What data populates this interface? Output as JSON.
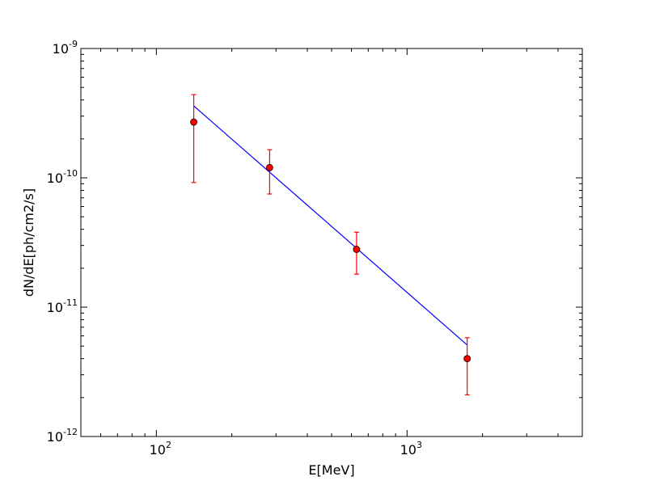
{
  "chart_data": {
    "type": "scatter",
    "title": "",
    "xlabel": "E[MeV]",
    "ylabel": "dN/dE[ph/cm2/s]",
    "xscale": "log",
    "yscale": "log",
    "xlim": [
      50,
      5000
    ],
    "ylim": [
      1e-12,
      1e-09
    ],
    "grid": false,
    "legend": "none",
    "x_ticks": [
      {
        "value": 100,
        "base": "10",
        "exp": "2"
      },
      {
        "value": 1000,
        "base": "10",
        "exp": "3"
      }
    ],
    "y_ticks": [
      {
        "value": 1e-12,
        "base": "10",
        "exp": "-12"
      },
      {
        "value": 1e-11,
        "base": "10",
        "exp": "-11"
      },
      {
        "value": 1e-10,
        "base": "10",
        "exp": "-10"
      },
      {
        "value": 1e-09,
        "base": "10",
        "exp": "-9"
      }
    ],
    "series": [
      {
        "type": "errorbar",
        "color": "#ff0000",
        "marker_color": "#ff0000",
        "points": [
          {
            "x": 141,
            "y": 2.7e-10,
            "ylow": 9.2e-11,
            "yhigh": 4.4e-10
          },
          {
            "x": 283,
            "y": 1.2e-10,
            "ylow": 7.5e-11,
            "yhigh": 1.65e-10
          },
          {
            "x": 629,
            "y": 2.8e-11,
            "ylow": 1.8e-11,
            "yhigh": 3.8e-11
          },
          {
            "x": 1737,
            "y": 4e-12,
            "ylow": 2.1e-12,
            "yhigh": 5.8e-12
          }
        ]
      },
      {
        "type": "line",
        "color": "#0000ff",
        "x": [
          141,
          1737
        ],
        "y": [
          3.6e-10,
          5.1e-12
        ]
      }
    ]
  }
}
